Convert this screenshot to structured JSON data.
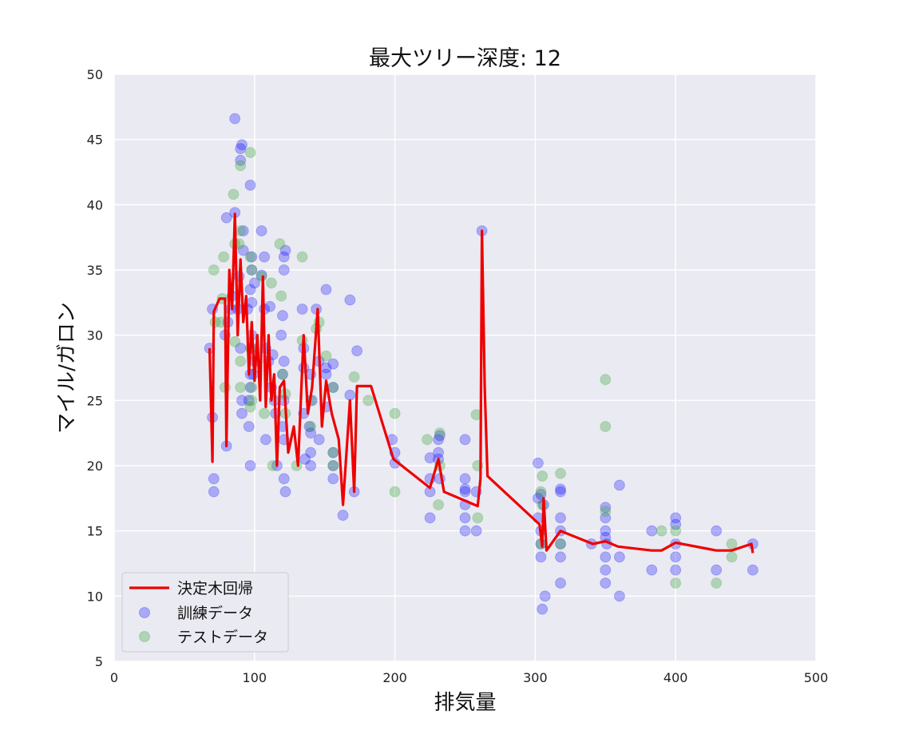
{
  "chart_data": {
    "type": "scatter",
    "title": "最大ツリー深度: 12",
    "xlabel": "排気量",
    "ylabel": "マイル/ガロン",
    "xlim": [
      0,
      500
    ],
    "ylim": [
      5,
      50
    ],
    "xticks": [
      0,
      100,
      200,
      300,
      400,
      500
    ],
    "yticks": [
      5,
      10,
      15,
      20,
      25,
      30,
      35,
      40,
      45,
      50
    ],
    "grid": true,
    "background": "#eaeaf2",
    "legend_position": "lower-left",
    "series": [
      {
        "name": "決定木回帰",
        "kind": "line",
        "color": "#ee0000",
        "points": [
          [
            68,
            29
          ],
          [
            70,
            20.3
          ],
          [
            71,
            31.8
          ],
          [
            75,
            32.8
          ],
          [
            79,
            32.8
          ],
          [
            80,
            21.5
          ],
          [
            82,
            35
          ],
          [
            84,
            32
          ],
          [
            86,
            39.3
          ],
          [
            88,
            30
          ],
          [
            90,
            35.8
          ],
          [
            92,
            31
          ],
          [
            94,
            33
          ],
          [
            96,
            27
          ],
          [
            98,
            31
          ],
          [
            100,
            26.5
          ],
          [
            102,
            30
          ],
          [
            104,
            25
          ],
          [
            106,
            34.5
          ],
          [
            108,
            24.5
          ],
          [
            110,
            30
          ],
          [
            112,
            25
          ],
          [
            114,
            27
          ],
          [
            116,
            20
          ],
          [
            118,
            26
          ],
          [
            121,
            26.5
          ],
          [
            124,
            21
          ],
          [
            128,
            23
          ],
          [
            131,
            20
          ],
          [
            135,
            30
          ],
          [
            138,
            24
          ],
          [
            141,
            26
          ],
          [
            145,
            32
          ],
          [
            148,
            23
          ],
          [
            151,
            26.5
          ],
          [
            155,
            24
          ],
          [
            160,
            22
          ],
          [
            163,
            17
          ],
          [
            168,
            25
          ],
          [
            171,
            18
          ],
          [
            173,
            26.1
          ],
          [
            183,
            26.1
          ],
          [
            199,
            20.5
          ],
          [
            225,
            18.3
          ],
          [
            231,
            20.5
          ],
          [
            235,
            18
          ],
          [
            259,
            16.9
          ],
          [
            261,
            19
          ],
          [
            262,
            38
          ],
          [
            264,
            26
          ],
          [
            266,
            19.2
          ],
          [
            303,
            15.5
          ],
          [
            305,
            13.8
          ],
          [
            306,
            17.5
          ],
          [
            308,
            13.5
          ],
          [
            318,
            15
          ],
          [
            341,
            14
          ],
          [
            350,
            14.2
          ],
          [
            359,
            13.8
          ],
          [
            383,
            13.5
          ],
          [
            390,
            13.5
          ],
          [
            400,
            14.1
          ],
          [
            429,
            13.5
          ],
          [
            440,
            13.5
          ],
          [
            454,
            14
          ],
          [
            455,
            13.3
          ]
        ]
      },
      {
        "name": "訓練データ",
        "kind": "scatter",
        "color": "#0000ff",
        "points": [
          [
            68,
            29
          ],
          [
            70,
            32
          ],
          [
            70,
            23.7
          ],
          [
            71,
            18
          ],
          [
            71,
            19
          ],
          [
            79,
            30
          ],
          [
            80,
            39
          ],
          [
            80,
            21.5
          ],
          [
            81,
            31
          ],
          [
            83,
            32
          ],
          [
            84,
            33
          ],
          [
            86,
            39.4
          ],
          [
            86,
            46.6
          ],
          [
            88,
            32
          ],
          [
            89,
            34.5
          ],
          [
            90,
            44.3
          ],
          [
            90,
            43.4
          ],
          [
            90,
            29
          ],
          [
            91,
            44.6
          ],
          [
            91,
            25
          ],
          [
            91,
            24
          ],
          [
            92,
            36.5
          ],
          [
            92,
            38
          ],
          [
            95,
            32
          ],
          [
            96,
            25
          ],
          [
            96,
            23
          ],
          [
            97,
            27
          ],
          [
            97,
            41.5
          ],
          [
            97,
            26
          ],
          [
            97,
            20
          ],
          [
            97,
            33.5
          ],
          [
            98,
            29
          ],
          [
            98,
            35
          ],
          [
            98,
            36
          ],
          [
            98,
            32.5
          ],
          [
            98,
            30
          ],
          [
            99,
            27
          ],
          [
            100,
            34
          ],
          [
            100,
            28
          ],
          [
            105,
            38
          ],
          [
            105,
            34.6
          ],
          [
            107,
            32
          ],
          [
            107,
            36
          ],
          [
            108,
            22
          ],
          [
            108,
            29
          ],
          [
            110,
            28
          ],
          [
            111,
            32.2
          ],
          [
            112,
            26
          ],
          [
            113,
            28.5
          ],
          [
            114,
            25
          ],
          [
            115,
            24
          ],
          [
            116,
            20
          ],
          [
            119,
            30
          ],
          [
            120,
            27
          ],
          [
            120,
            31.5
          ],
          [
            120,
            23
          ],
          [
            121,
            36
          ],
          [
            121,
            28
          ],
          [
            121,
            35
          ],
          [
            121,
            25
          ],
          [
            121,
            22
          ],
          [
            121,
            19
          ],
          [
            122,
            36.5
          ],
          [
            122,
            18
          ],
          [
            134,
            32
          ],
          [
            135,
            27.5
          ],
          [
            135,
            24
          ],
          [
            135,
            29
          ],
          [
            136,
            20.5
          ],
          [
            139,
            23
          ],
          [
            140,
            22.5
          ],
          [
            140,
            21
          ],
          [
            140,
            20
          ],
          [
            140,
            27
          ],
          [
            141,
            25
          ],
          [
            144,
            32
          ],
          [
            146,
            28
          ],
          [
            146,
            22
          ],
          [
            151,
            33.5
          ],
          [
            151,
            27
          ],
          [
            151,
            24.5
          ],
          [
            151,
            27.5
          ],
          [
            156,
            26
          ],
          [
            156,
            20
          ],
          [
            156,
            19
          ],
          [
            156,
            21
          ],
          [
            156,
            27.8
          ],
          [
            163,
            16.2
          ],
          [
            168,
            25.4
          ],
          [
            168,
            32.7
          ],
          [
            171,
            18
          ],
          [
            173,
            28.8
          ],
          [
            198,
            22
          ],
          [
            200,
            21
          ],
          [
            200,
            20.2
          ],
          [
            225,
            20.6
          ],
          [
            225,
            18
          ],
          [
            225,
            19
          ],
          [
            225,
            16
          ],
          [
            231,
            22
          ],
          [
            231,
            20.5
          ],
          [
            231,
            21
          ],
          [
            232,
            22.3
          ],
          [
            232,
            19
          ],
          [
            250,
            22
          ],
          [
            250,
            19
          ],
          [
            250,
            18.2
          ],
          [
            250,
            18
          ],
          [
            250,
            17
          ],
          [
            250,
            16
          ],
          [
            250,
            15
          ],
          [
            258,
            15
          ],
          [
            258,
            18
          ],
          [
            262,
            38
          ],
          [
            302,
            20.2
          ],
          [
            302,
            17.5
          ],
          [
            302,
            16
          ],
          [
            304,
            17.8
          ],
          [
            304,
            15
          ],
          [
            304,
            14
          ],
          [
            304,
            13
          ],
          [
            305,
            9
          ],
          [
            306,
            17
          ],
          [
            307,
            10
          ],
          [
            318,
            18.2
          ],
          [
            318,
            18
          ],
          [
            318,
            16
          ],
          [
            318,
            15
          ],
          [
            318,
            14
          ],
          [
            318,
            13
          ],
          [
            318,
            11
          ],
          [
            340,
            14
          ],
          [
            350,
            16
          ],
          [
            350,
            15
          ],
          [
            350,
            14.5
          ],
          [
            350,
            13
          ],
          [
            350,
            12
          ],
          [
            350,
            11
          ],
          [
            350,
            16.8
          ],
          [
            351,
            14
          ],
          [
            360,
            18.5
          ],
          [
            360,
            10
          ],
          [
            360,
            13
          ],
          [
            383,
            12
          ],
          [
            383,
            15
          ],
          [
            400,
            16
          ],
          [
            400,
            15.5
          ],
          [
            400,
            14
          ],
          [
            400,
            13
          ],
          [
            400,
            12
          ],
          [
            429,
            15
          ],
          [
            429,
            12
          ],
          [
            455,
            14
          ],
          [
            455,
            12
          ]
        ]
      },
      {
        "name": "テストデータ",
        "kind": "scatter",
        "color": "#44aa44",
        "points": [
          [
            71,
            35
          ],
          [
            72,
            31
          ],
          [
            76,
            31
          ],
          [
            77,
            32.8
          ],
          [
            78,
            36
          ],
          [
            79,
            26
          ],
          [
            85,
            40.8
          ],
          [
            86,
            37
          ],
          [
            86,
            29.5
          ],
          [
            89,
            37
          ],
          [
            90,
            43
          ],
          [
            90,
            38
          ],
          [
            90,
            26
          ],
          [
            90,
            28
          ],
          [
            97,
            44
          ],
          [
            97,
            36
          ],
          [
            97,
            29
          ],
          [
            97,
            24.5
          ],
          [
            98,
            35
          ],
          [
            98,
            26
          ],
          [
            98,
            25
          ],
          [
            105,
            34.5
          ],
          [
            107,
            24
          ],
          [
            112,
            34
          ],
          [
            113,
            20
          ],
          [
            118,
            37
          ],
          [
            119,
            33
          ],
          [
            120,
            27
          ],
          [
            122,
            25.5
          ],
          [
            122,
            24
          ],
          [
            130,
            20
          ],
          [
            134,
            36
          ],
          [
            134,
            29.6
          ],
          [
            140,
            23
          ],
          [
            140,
            25
          ],
          [
            144,
            30.5
          ],
          [
            146,
            31
          ],
          [
            151,
            28.4
          ],
          [
            156,
            26
          ],
          [
            156,
            21
          ],
          [
            156,
            20
          ],
          [
            171,
            26.8
          ],
          [
            181,
            25
          ],
          [
            200,
            24
          ],
          [
            200,
            18
          ],
          [
            223,
            22
          ],
          [
            231,
            17
          ],
          [
            232,
            22.5
          ],
          [
            232,
            20
          ],
          [
            258,
            23.9
          ],
          [
            259,
            20
          ],
          [
            259,
            16
          ],
          [
            304,
            18
          ],
          [
            304,
            14
          ],
          [
            305,
            19.2
          ],
          [
            305,
            17
          ],
          [
            318,
            19.4
          ],
          [
            318,
            14
          ],
          [
            350,
            26.6
          ],
          [
            350,
            23
          ],
          [
            350,
            16.5
          ],
          [
            390,
            15
          ],
          [
            400,
            11
          ],
          [
            400,
            15
          ],
          [
            429,
            11
          ],
          [
            440,
            13
          ],
          [
            440,
            14
          ]
        ]
      }
    ]
  }
}
